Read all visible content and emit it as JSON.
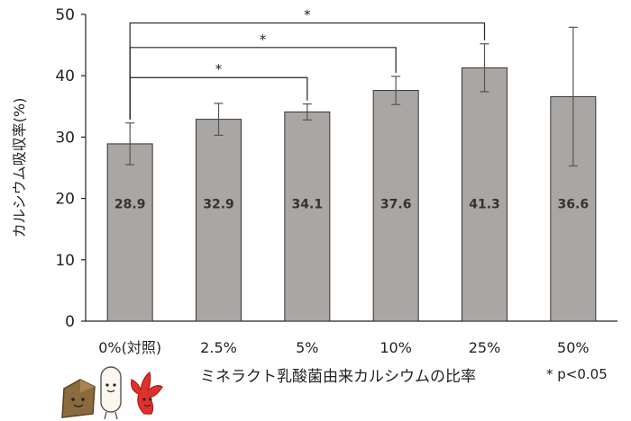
{
  "chart_data": {
    "type": "bar",
    "categories": [
      "0%(対照)",
      "2.5%",
      "5%",
      "10%",
      "25%",
      "50%"
    ],
    "values": [
      28.9,
      32.9,
      34.1,
      37.6,
      41.3,
      36.6
    ],
    "value_labels": [
      "28.9",
      "32.9",
      "34.1",
      "37.6",
      "41.3",
      "36.6"
    ],
    "error_bars": [
      [
        25.5,
        32.3
      ],
      [
        30.3,
        35.5
      ],
      [
        32.8,
        35.4
      ],
      [
        35.3,
        39.9
      ],
      [
        37.4,
        45.2
      ],
      [
        25.3,
        47.9
      ]
    ],
    "ylabel": "カルシウム吸収率(%)",
    "xlabel": "ミネラクト乳酸菌由来カルシウムの比率",
    "ylim": [
      0,
      50
    ],
    "yticks": [
      0,
      10,
      20,
      30,
      40,
      50
    ],
    "grid": false,
    "bar_color": "#aaa6a3",
    "significance": [
      {
        "from": "0%(対照)",
        "to": "5%",
        "label": "*"
      },
      {
        "from": "0%(対照)",
        "to": "10%",
        "label": "*"
      },
      {
        "from": "0%(対照)",
        "to": "25%",
        "label": "*"
      }
    ],
    "footnote": "* p<0.05"
  },
  "mascots": {
    "icons": [
      "bread-mascot-icon",
      "rice-grain-mascot-icon",
      "seaweed-mascot-icon"
    ]
  }
}
